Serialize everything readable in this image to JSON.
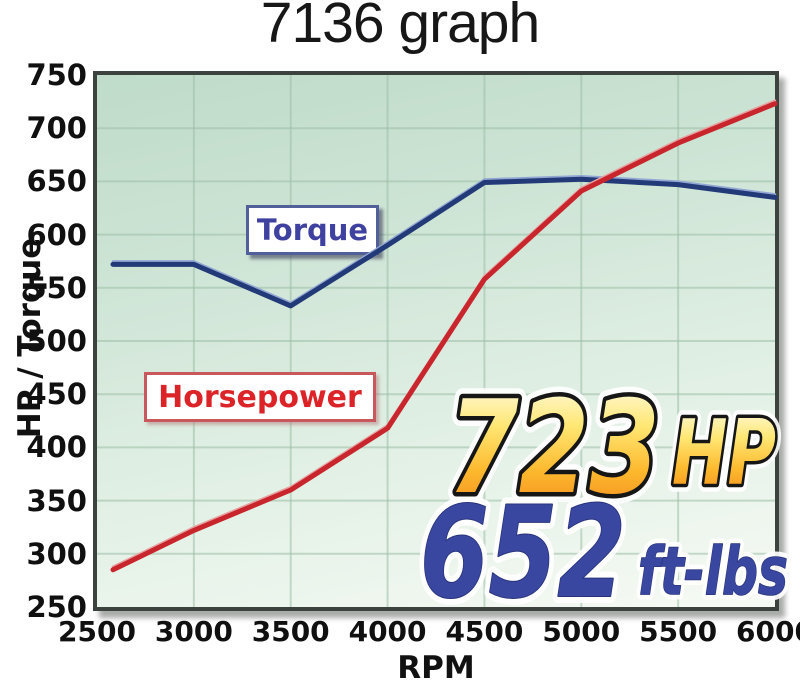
{
  "title": "7136 graph",
  "axes": {
    "y_title": "HP / Torque",
    "x_title": "RPM",
    "y_ticks": [
      750,
      700,
      650,
      600,
      550,
      500,
      450,
      400,
      350,
      300,
      250
    ],
    "x_ticks": [
      2500,
      3000,
      3500,
      4000,
      4500,
      5000,
      5500,
      6000
    ]
  },
  "labels": {
    "torque": "Torque",
    "horsepower": "Horsepower"
  },
  "callouts": {
    "hp_value": "723",
    "hp_unit": "HP",
    "tq_value": "652",
    "tq_unit": "ft-lbs"
  },
  "colors": {
    "plot_bg_top": "#bfdbc9",
    "plot_bg_bottom": "#f6faf4",
    "grid": "#9dbfa7",
    "frame": "#3c423e",
    "gold_top": "#fffef2",
    "gold_mid": "#ffe773",
    "gold_bottom": "#f08018",
    "blue_text": "#3a47a0"
  },
  "chart_data": {
    "type": "line",
    "title": "7136 graph",
    "xlabel": "RPM",
    "ylabel": "HP / Torque",
    "xlim": [
      2500,
      6000
    ],
    "ylim": [
      250,
      750
    ],
    "grid": true,
    "x": [
      2500,
      3000,
      3500,
      4000,
      4500,
      5000,
      5500,
      6000
    ],
    "series": [
      {
        "name": "Torque",
        "color": "#223a77",
        "highlight": "#93a7d4",
        "values": [
          572,
          572,
          533,
          590,
          649,
          652,
          647,
          635
        ],
        "peak_label": "652 ft-lbs"
      },
      {
        "name": "Horsepower",
        "color": "#c8252c",
        "highlight": "#e7a0a0",
        "values": [
          285,
          322,
          360,
          418,
          558,
          641,
          686,
          723
        ],
        "peak_label": "723 HP"
      }
    ]
  }
}
